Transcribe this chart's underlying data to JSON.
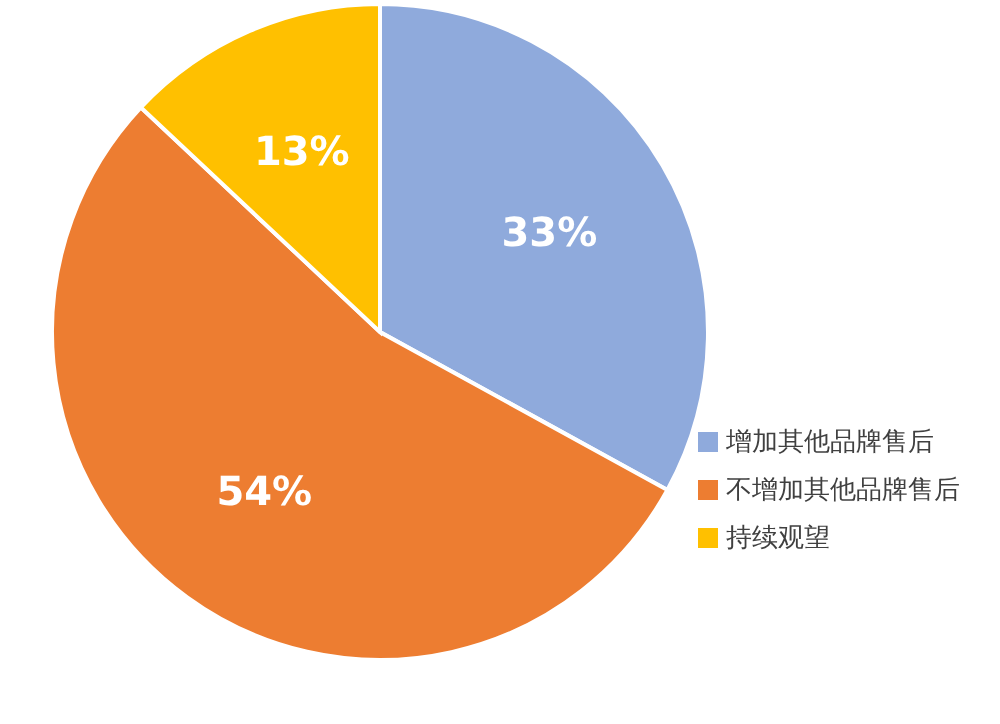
{
  "chart_data": {
    "type": "pie",
    "categories": [
      "增加其他品牌售后",
      "不增加其他品牌售后",
      "持续观望"
    ],
    "values": [
      33,
      54,
      13
    ],
    "colors": [
      "#8faadc",
      "#ed7d31",
      "#ffc000"
    ],
    "value_labels": [
      "33%",
      "54%",
      "13%"
    ],
    "legend": "bottom right"
  }
}
